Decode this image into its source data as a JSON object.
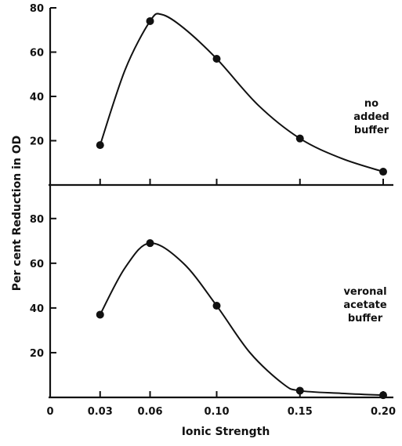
{
  "chart_data": [
    {
      "type": "line",
      "panel": "top",
      "annotation": [
        "no",
        "added",
        "buffer"
      ],
      "x_ticks": [
        "0.03",
        "0.06",
        "0.10",
        "0.15",
        "0.20"
      ],
      "y_ticks": [
        "20",
        "40",
        "60",
        "80"
      ],
      "ylim": [
        0,
        80
      ],
      "xlim": [
        0,
        0.205
      ],
      "points": [
        {
          "x": 0.03,
          "y": 18
        },
        {
          "x": 0.06,
          "y": 74
        },
        {
          "x": 0.1,
          "y": 57
        },
        {
          "x": 0.15,
          "y": 21
        },
        {
          "x": 0.2,
          "y": 6
        }
      ],
      "curve": [
        {
          "x": 0.03,
          "y": 18
        },
        {
          "x": 0.045,
          "y": 52
        },
        {
          "x": 0.06,
          "y": 74
        },
        {
          "x": 0.067,
          "y": 77
        },
        {
          "x": 0.08,
          "y": 71
        },
        {
          "x": 0.1,
          "y": 57
        },
        {
          "x": 0.125,
          "y": 36
        },
        {
          "x": 0.15,
          "y": 21
        },
        {
          "x": 0.175,
          "y": 12
        },
        {
          "x": 0.2,
          "y": 6
        }
      ]
    },
    {
      "type": "line",
      "panel": "bottom",
      "annotation": [
        "veronal",
        "acetate",
        "buffer"
      ],
      "x_ticks": [
        "0",
        "0.03",
        "0.06",
        "0.10",
        "0.15",
        "0.20"
      ],
      "y_ticks": [
        "20",
        "40",
        "60",
        "80"
      ],
      "ylim": [
        0,
        95
      ],
      "xlim": [
        0,
        0.205
      ],
      "points": [
        {
          "x": 0.03,
          "y": 37
        },
        {
          "x": 0.06,
          "y": 69
        },
        {
          "x": 0.1,
          "y": 41
        },
        {
          "x": 0.15,
          "y": 3
        },
        {
          "x": 0.2,
          "y": 1
        }
      ],
      "curve": [
        {
          "x": 0.03,
          "y": 37
        },
        {
          "x": 0.045,
          "y": 58
        },
        {
          "x": 0.06,
          "y": 69
        },
        {
          "x": 0.08,
          "y": 60
        },
        {
          "x": 0.1,
          "y": 41
        },
        {
          "x": 0.12,
          "y": 20
        },
        {
          "x": 0.14,
          "y": 6
        },
        {
          "x": 0.15,
          "y": 3
        },
        {
          "x": 0.175,
          "y": 1.8
        },
        {
          "x": 0.2,
          "y": 1
        }
      ]
    }
  ],
  "ylabel": "Per cent Reduction in OD",
  "xlabel": "Ionic Strength"
}
